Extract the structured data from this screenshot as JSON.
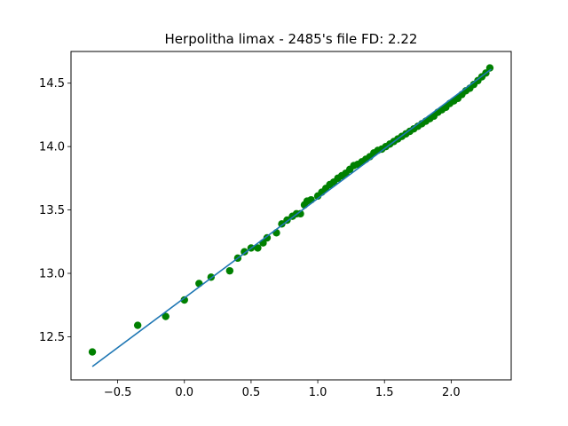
{
  "chart_data": {
    "type": "scatter",
    "title": "Herpolitha limax - 2485's file FD: 2.22",
    "xlabel": "",
    "ylabel": "",
    "xlim": [
      -0.85,
      2.45
    ],
    "ylim": [
      12.16,
      14.75
    ],
    "x_ticks": [
      -0.5,
      0.0,
      0.5,
      1.0,
      1.5,
      2.0
    ],
    "x_tick_labels": [
      "−0.5",
      "0.0",
      "0.5",
      "1.0",
      "1.5",
      "2.0"
    ],
    "y_ticks": [
      12.5,
      13.0,
      13.5,
      14.0,
      14.5
    ],
    "y_tick_labels": [
      "12.5",
      "13.0",
      "13.5",
      "14.0",
      "14.5"
    ],
    "grid": false,
    "legend": "none",
    "series": [
      {
        "kind": "scatter",
        "color": "#008000",
        "x": [
          -0.69,
          -0.35,
          -0.14,
          0.0,
          0.11,
          0.2,
          0.34,
          0.4,
          0.45,
          0.5,
          0.55,
          0.59,
          0.62,
          0.69,
          0.73,
          0.77,
          0.81,
          0.84,
          0.87,
          0.9,
          0.92,
          0.95,
          1.0,
          1.03,
          1.06,
          1.09,
          1.12,
          1.15,
          1.18,
          1.21,
          1.24,
          1.27,
          1.3,
          1.33,
          1.36,
          1.39,
          1.42,
          1.45,
          1.48,
          1.51,
          1.54,
          1.57,
          1.6,
          1.63,
          1.66,
          1.69,
          1.72,
          1.75,
          1.78,
          1.81,
          1.84,
          1.87,
          1.9,
          1.93,
          1.96,
          1.99,
          2.02,
          2.05,
          2.08,
          2.11,
          2.14,
          2.17,
          2.2,
          2.23,
          2.26,
          2.29
        ],
        "y": [
          12.38,
          12.59,
          12.66,
          12.79,
          12.92,
          12.97,
          13.02,
          13.12,
          13.17,
          13.2,
          13.2,
          13.24,
          13.28,
          13.32,
          13.39,
          13.42,
          13.45,
          13.47,
          13.47,
          13.54,
          13.57,
          13.58,
          13.61,
          13.64,
          13.67,
          13.7,
          13.72,
          13.75,
          13.77,
          13.79,
          13.82,
          13.85,
          13.86,
          13.88,
          13.9,
          13.92,
          13.95,
          13.97,
          13.98,
          14.0,
          14.02,
          14.04,
          14.06,
          14.08,
          14.1,
          14.12,
          14.14,
          14.16,
          14.18,
          14.2,
          14.22,
          14.24,
          14.27,
          14.29,
          14.31,
          14.34,
          14.36,
          14.38,
          14.41,
          14.44,
          14.46,
          14.49,
          14.52,
          14.55,
          14.58,
          14.62
        ]
      },
      {
        "kind": "line",
        "color": "#1f77b4",
        "x": [
          -0.69,
          2.3
        ],
        "y": [
          12.265,
          14.61
        ]
      }
    ]
  }
}
